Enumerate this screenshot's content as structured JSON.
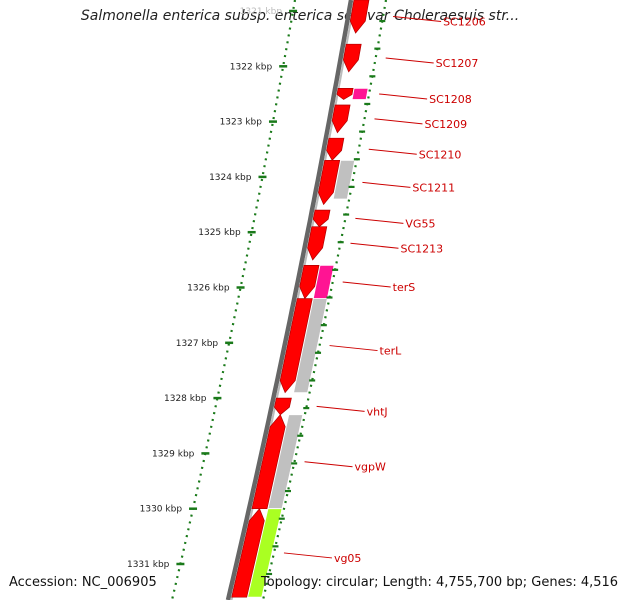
{
  "title": "Salmonella enterica subsp. enterica serovar Choleraesuis str...",
  "footer": {
    "accession": "Accession: NC_006905",
    "topology": "Topology: circular; Length: 4,755,700 bp; Genes: 4,516"
  },
  "colors": {
    "gene_red": "#ff0000",
    "gene_magenta": "#ff1493",
    "gene_gray": "#c0c0c0",
    "gene_lime": "#aaff22",
    "gene_olive": "#b0a060",
    "tick_green": "#1a7a1a",
    "label_red": "#cc0000",
    "backbone": "#888888"
  },
  "scale": {
    "unit": "kbp",
    "ticks": [
      {
        "kbp": 1321,
        "label": "1321 kbp",
        "faint": true
      },
      {
        "kbp": 1322,
        "label": "1322 kbp"
      },
      {
        "kbp": 1323,
        "label": "1323 kbp"
      },
      {
        "kbp": 1324,
        "label": "1324 kbp"
      },
      {
        "kbp": 1325,
        "label": "1325 kbp"
      },
      {
        "kbp": 1326,
        "label": "1326 kbp"
      },
      {
        "kbp": 1327,
        "label": "1327 kbp"
      },
      {
        "kbp": 1328,
        "label": "1328 kbp"
      },
      {
        "kbp": 1329,
        "label": "1329 kbp"
      },
      {
        "kbp": 1330,
        "label": "1330 kbp"
      },
      {
        "kbp": 1331,
        "label": "1331 kbp"
      }
    ]
  },
  "genes": [
    {
      "label": "SC1206",
      "start": 1320.8,
      "end": 1321.4,
      "strand": "reverse",
      "color": "red"
    },
    {
      "label": "SC1207",
      "start": 1321.6,
      "end": 1322.1,
      "strand": "reverse",
      "color": "red"
    },
    {
      "label": "SC1208",
      "start": 1322.4,
      "end": 1322.6,
      "strand": "reverse",
      "color": "red"
    },
    {
      "label": "SC1209",
      "start": 1322.7,
      "end": 1323.2,
      "strand": "reverse",
      "color": "red"
    },
    {
      "label": "SC1210",
      "start": 1323.3,
      "end": 1323.7,
      "strand": "reverse",
      "color": "red"
    },
    {
      "label": "SC1211",
      "start": 1323.7,
      "end": 1324.5,
      "strand": "reverse",
      "color": "red"
    },
    {
      "label": "VG55",
      "start": 1324.6,
      "end": 1324.9,
      "strand": "reverse",
      "color": "red"
    },
    {
      "label": "SC1213",
      "start": 1324.9,
      "end": 1325.5,
      "strand": "reverse",
      "color": "red"
    },
    {
      "label": "terS",
      "start": 1325.6,
      "end": 1326.2,
      "strand": "reverse",
      "color": "red"
    },
    {
      "label": "terL",
      "start": 1326.2,
      "end": 1327.9,
      "strand": "reverse",
      "color": "red"
    },
    {
      "label": "vhtJ",
      "start": 1328.0,
      "end": 1328.3,
      "strand": "reverse",
      "color": "red"
    },
    {
      "label": "vgpW",
      "start": 1328.3,
      "end": 1330.0,
      "strand": "forward",
      "color": "red"
    },
    {
      "label": "vg05",
      "start": 1330.0,
      "end": 1331.6,
      "strand": "forward",
      "color": "red"
    }
  ],
  "annotations": [
    {
      "track": "inner",
      "start": 1322.4,
      "end": 1322.6,
      "color": "magenta"
    },
    {
      "track": "inner",
      "start": 1323.7,
      "end": 1324.4,
      "color": "gray"
    },
    {
      "track": "inner",
      "start": 1325.6,
      "end": 1326.2,
      "color": "magenta"
    },
    {
      "track": "inner",
      "start": 1326.2,
      "end": 1327.9,
      "color": "gray"
    },
    {
      "track": "inner",
      "start": 1328.3,
      "end": 1330.0,
      "color": "gray"
    },
    {
      "track": "inner",
      "start": 1330.0,
      "end": 1331.6,
      "color": "lime"
    }
  ]
}
